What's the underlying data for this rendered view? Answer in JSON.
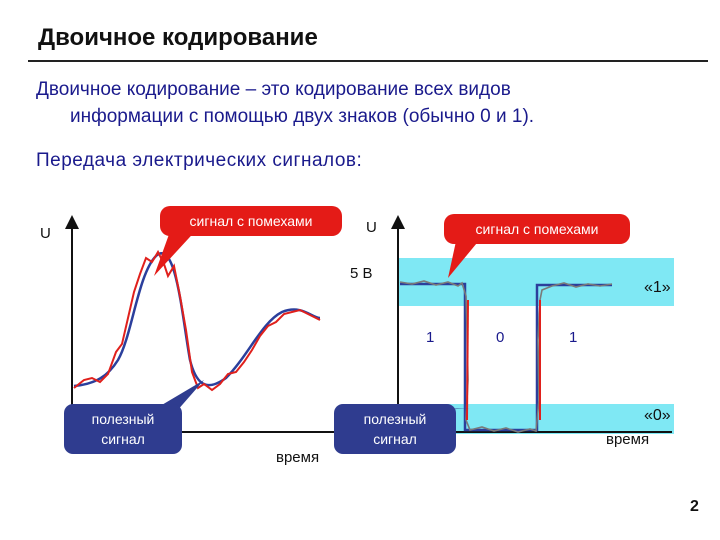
{
  "slide": {
    "title": "Двоичное кодирование",
    "definition_term": "Двоичное кодирование",
    "definition_rest_line1": " – это кодирование всех видов",
    "definition_line2": "информации с помощью двух знаков (обычно 0 и 1).",
    "subheading": "Передача электрических сигналов:",
    "page_number": "2"
  },
  "left_chart": {
    "y_axis_label": "U",
    "x_axis_label": "время",
    "callout_noise": "сигнал с помехами",
    "callout_useful_line1": "полезный",
    "callout_useful_line2": "сигнал"
  },
  "right_chart": {
    "y_axis_label": "U",
    "voltage_label": "5 В",
    "x_axis_label": "время",
    "callout_noise": "сигнал с помехами",
    "callout_useful_line1": "полезный",
    "callout_useful_line2": "сигнал",
    "bit_labels": [
      "1",
      "0",
      "1"
    ],
    "band_high_label": "«1»",
    "band_low_label": "«0»"
  },
  "colors": {
    "useful_signal": "#2b3f9c",
    "noisy_signal": "#e0201c",
    "callout_red": "#e41b17",
    "callout_blue": "#2f3c8f",
    "band": "#7fe8f4",
    "text_blue": "#1a1a8c"
  }
}
